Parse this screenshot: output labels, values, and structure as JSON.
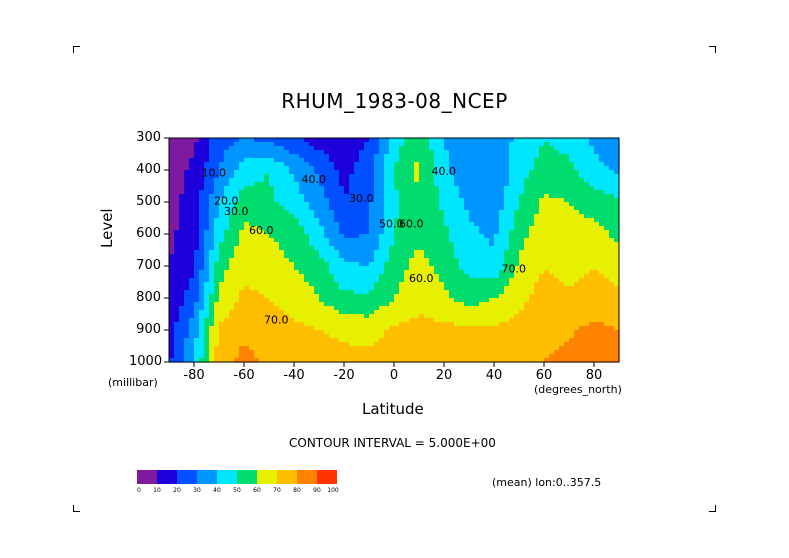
{
  "chart_data": {
    "type": "heatmap",
    "title": "RHUM_1983-08_NCEP",
    "xlabel": "Latitude",
    "ylabel": "Level",
    "xunit": "(degrees_north)",
    "yunit": "(millibar)",
    "xlim": [
      -90,
      90
    ],
    "ylim": [
      1000,
      300
    ],
    "xticks": [
      "-80",
      "-60",
      "-40",
      "-20",
      "0",
      "20",
      "40",
      "60",
      "80"
    ],
    "yticks": [
      "300",
      "400",
      "500",
      "600",
      "700",
      "800",
      "900",
      "1000"
    ],
    "contour_interval_text": "CONTOUR INTERVAL = 5.000E+00",
    "mean_text": "(mean) lon:0..357.5",
    "colorbar": {
      "labels": [
        "0",
        "10",
        "20",
        "30",
        "40",
        "50",
        "60",
        "70",
        "80",
        "90",
        "100"
      ],
      "colors": [
        "#7f1a9e",
        "#1e00dc",
        "#0050ff",
        "#0096ff",
        "#00e6ff",
        "#00dc6e",
        "#e6f000",
        "#ffbe00",
        "#ff8200",
        "#ff3200"
      ]
    },
    "contour_labels": [
      "10.0",
      "20.0",
      "30.0",
      "30.0",
      "40.0",
      "40.0",
      "50.0",
      "60.0",
      "60.0",
      "60.0",
      "70.0",
      "70.0"
    ],
    "lat": [
      -90,
      -80,
      -70,
      -60,
      -50,
      -40,
      -30,
      -20,
      -10,
      0,
      10,
      20,
      30,
      40,
      50,
      60,
      70,
      80,
      90
    ],
    "levels": [
      300,
      400,
      500,
      600,
      700,
      800,
      900,
      1000
    ],
    "values": [
      [
        3,
        8,
        25,
        30,
        27,
        22,
        15,
        13,
        20,
        45,
        58,
        40,
        35,
        35,
        42,
        50,
        46,
        38,
        32
      ],
      [
        5,
        12,
        30,
        45,
        50,
        38,
        28,
        17,
        26,
        50,
        62,
        42,
        32,
        30,
        46,
        54,
        53,
        43,
        38
      ],
      [
        7,
        14,
        40,
        55,
        52,
        45,
        35,
        20,
        28,
        48,
        60,
        48,
        38,
        34,
        50,
        62,
        60,
        56,
        52
      ],
      [
        8,
        15,
        46,
        63,
        60,
        56,
        43,
        28,
        30,
        50,
        58,
        52,
        42,
        38,
        56,
        66,
        63,
        63,
        58
      ],
      [
        10,
        18,
        55,
        68,
        64,
        60,
        55,
        42,
        40,
        55,
        64,
        56,
        46,
        43,
        62,
        70,
        66,
        70,
        66
      ],
      [
        12,
        25,
        62,
        72,
        70,
        66,
        60,
        52,
        52,
        60,
        68,
        62,
        56,
        60,
        67,
        74,
        72,
        76,
        72
      ],
      [
        15,
        35,
        72,
        78,
        75,
        72,
        70,
        68,
        66,
        72,
        72,
        73,
        72,
        72,
        73,
        78,
        79,
        82,
        80
      ],
      [
        18,
        40,
        75,
        83,
        78,
        76,
        75,
        73,
        73,
        75,
        75,
        76,
        76,
        78,
        78,
        80,
        82,
        85,
        85
      ]
    ]
  }
}
